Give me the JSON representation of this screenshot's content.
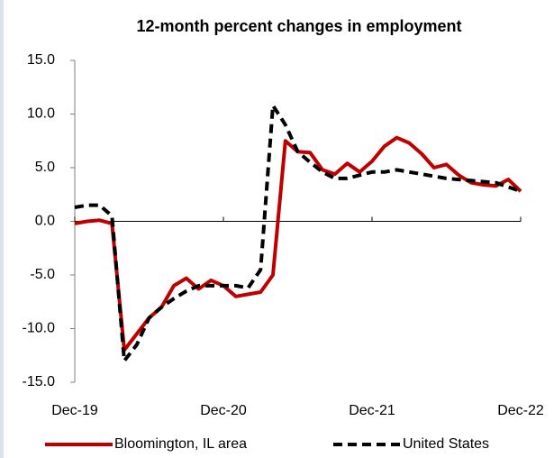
{
  "chart_data": {
    "type": "line",
    "title": "12-month percent changes in employment",
    "categories": [
      "Dec-19",
      null,
      null,
      null,
      null,
      null,
      null,
      null,
      null,
      null,
      null,
      null,
      "Dec-20",
      null,
      null,
      null,
      null,
      null,
      null,
      null,
      null,
      null,
      null,
      null,
      "Dec-21",
      null,
      null,
      null,
      null,
      null,
      null,
      null,
      null,
      null,
      null,
      null,
      "Dec-22"
    ],
    "series": [
      {
        "name": "Bloomington, IL area",
        "color": "#c00000",
        "dash": "solid",
        "values": [
          -0.2,
          0.0,
          0.1,
          -0.2,
          -12.0,
          -10.5,
          -9.0,
          -8.0,
          -6.0,
          -5.3,
          -6.3,
          -5.5,
          -6.0,
          -7.0,
          -6.8,
          -6.6,
          -5.0,
          7.5,
          6.5,
          6.4,
          4.8,
          4.4,
          5.4,
          4.6,
          5.6,
          7.0,
          7.8,
          7.3,
          6.3,
          5.0,
          5.3,
          4.3,
          3.6,
          3.4,
          3.3,
          3.9,
          2.8
        ]
      },
      {
        "name": "United States",
        "color": "#000000",
        "dash": "dashed",
        "values": [
          1.3,
          1.5,
          1.5,
          0.5,
          -13.0,
          -11.5,
          -9.0,
          -8.0,
          -7.2,
          -6.5,
          -6.0,
          -6.0,
          -6.0,
          -6.0,
          -6.2,
          -4.5,
          10.8,
          9.0,
          6.5,
          5.5,
          4.6,
          4.0,
          4.0,
          4.3,
          4.6,
          4.6,
          4.8,
          4.6,
          4.4,
          4.2,
          4.0,
          3.9,
          3.8,
          3.7,
          3.6,
          3.2,
          2.8
        ]
      }
    ],
    "ylim": [
      -15,
      15
    ],
    "yticks": [
      {
        "value": -15,
        "label": "-15.0"
      },
      {
        "value": -10,
        "label": "-10.0"
      },
      {
        "value": -5,
        "label": "-5.0"
      },
      {
        "value": 0,
        "label": "0.0"
      },
      {
        "value": 5,
        "label": "5.0"
      },
      {
        "value": 10,
        "label": "10.0"
      },
      {
        "value": 15,
        "label": "15.0"
      }
    ],
    "grid": false,
    "legend": "bottom"
  }
}
